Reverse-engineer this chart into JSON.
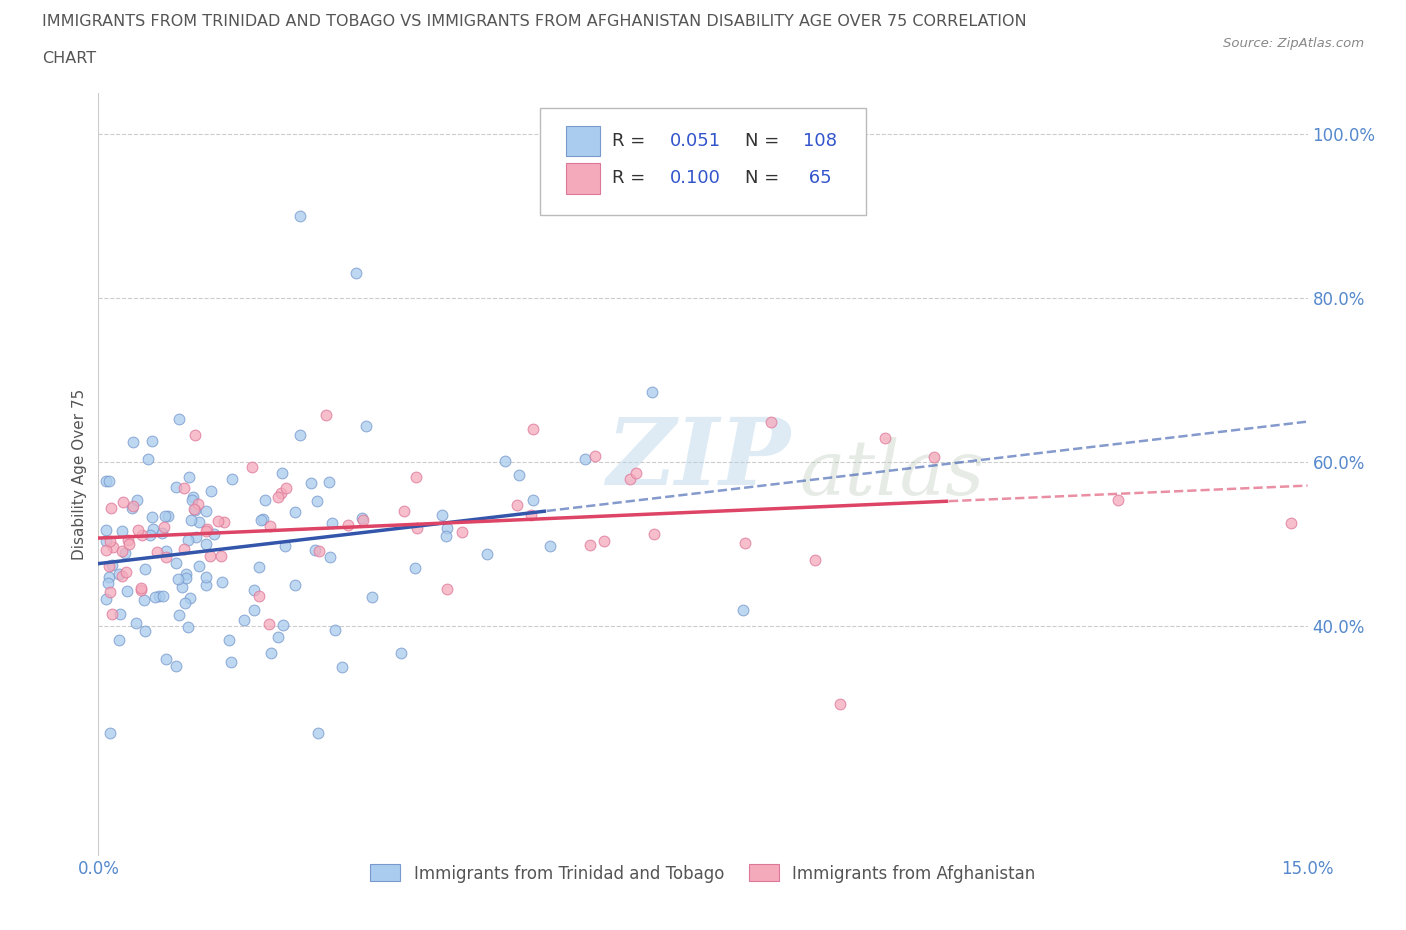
{
  "title_line1": "IMMIGRANTS FROM TRINIDAD AND TOBAGO VS IMMIGRANTS FROM AFGHANISTAN DISABILITY AGE OVER 75 CORRELATION",
  "title_line2": "CHART",
  "source": "Source: ZipAtlas.com",
  "ylabel": "Disability Age Over 75",
  "xlim": [
    0.0,
    0.15
  ],
  "ylim": [
    0.12,
    1.05
  ],
  "xtick_positions": [
    0.0,
    0.15
  ],
  "xtick_labels": [
    "0.0%",
    "15.0%"
  ],
  "ytick_positions": [
    0.4,
    0.6,
    0.8,
    1.0
  ],
  "ytick_labels": [
    "40.0%",
    "60.0%",
    "80.0%",
    "100.0%"
  ],
  "right_ytick_positions": [
    0.4,
    0.6,
    0.8,
    1.0
  ],
  "right_ytick_labels": [
    "40.0%",
    "60.0%",
    "80.0%",
    "100.0%"
  ],
  "trinidad_color": "#aaccee",
  "afghanistan_color": "#f5aabb",
  "trinidad_edge": "#7799cc",
  "afghanistan_edge": "#dd7799",
  "trend_trinidad_color": "#3355aa",
  "trend_afghanistan_color": "#dd4466",
  "R_trinidad": 0.051,
  "N_trinidad": 108,
  "R_afghanistan": 0.1,
  "N_afghanistan": 65,
  "legend_label_1": "Immigrants from Trinidad and Tobago",
  "legend_label_2": "Immigrants from Afghanistan",
  "watermark_zip": "ZIP",
  "watermark_atlas": "atlas",
  "background_color": "#ffffff",
  "grid_color": "#cccccc",
  "title_color": "#555555",
  "axis_tick_color": "#5588cc",
  "legend_R_color": "#3355cc",
  "legend_box_edge": "#bbbbbb"
}
